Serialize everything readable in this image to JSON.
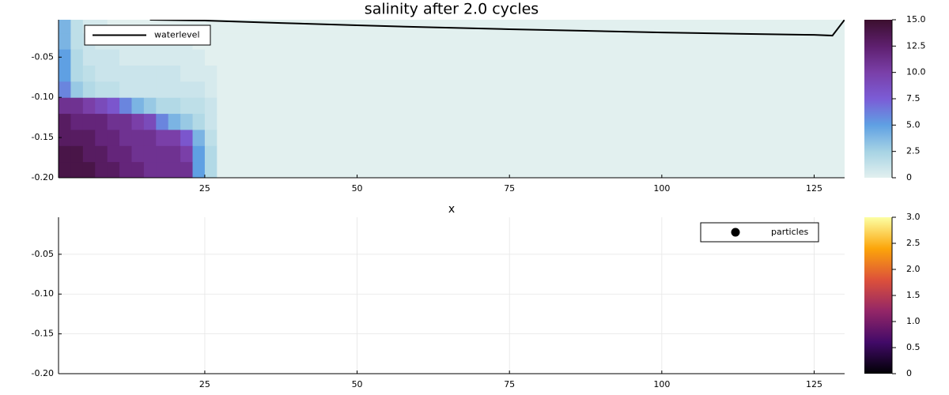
{
  "chart_data": [
    {
      "type": "heatmap",
      "title": "salinity after 2.0 cycles",
      "xlabel": "x",
      "x_edges": [
        1,
        3,
        5,
        7,
        9,
        11,
        13,
        15,
        17,
        19,
        21,
        23,
        25,
        27,
        130
      ],
      "y_edges": [
        -0.2,
        -0.18,
        -0.16,
        -0.14,
        -0.12,
        -0.1,
        -0.08,
        -0.06,
        -0.04,
        -0.02,
        -0.0035
      ],
      "values": [
        [
          14,
          14,
          14,
          13,
          13,
          12,
          12,
          11,
          11,
          11,
          11,
          5,
          2,
          0
        ],
        [
          14,
          14,
          13,
          13,
          12,
          12,
          11,
          11,
          11,
          11,
          10,
          5,
          2,
          0
        ],
        [
          13,
          13,
          13,
          12,
          12,
          11,
          11,
          11,
          10,
          10,
          8,
          4,
          1.5,
          0
        ],
        [
          13,
          12,
          12,
          12,
          11,
          11,
          10,
          9,
          6,
          4,
          3,
          2,
          1,
          0
        ],
        [
          11,
          11,
          10,
          9,
          8,
          6,
          4,
          3,
          2,
          2,
          1.5,
          1.5,
          1,
          0
        ],
        [
          6,
          3,
          2,
          1.5,
          1.5,
          1,
          1,
          1,
          1,
          1,
          1,
          1,
          0.5,
          0
        ],
        [
          5,
          2,
          1.5,
          1,
          1,
          1,
          1,
          1,
          1,
          1,
          0.5,
          0.5,
          0.5,
          0
        ],
        [
          5,
          2,
          1,
          1,
          1,
          0.5,
          0.5,
          0.5,
          0.5,
          0.5,
          0.5,
          0.5,
          0,
          0
        ],
        [
          4,
          1.5,
          1,
          0.5,
          0.5,
          0.5,
          0.5,
          0.5,
          0.5,
          0.5,
          0.5,
          0,
          0,
          0
        ],
        [
          4,
          1.5,
          0.5,
          0.5,
          0,
          0,
          0,
          0,
          0,
          0,
          0,
          0,
          0,
          0
        ]
      ],
      "xlim": [
        1,
        130
      ],
      "ylim": [
        -0.2,
        -0.0035
      ],
      "xticks": [
        25,
        50,
        75,
        100,
        125
      ],
      "yticks": [
        -0.05,
        {
          "value": -0.1,
          "label": "-0.10"
        },
        -0.15,
        {
          "value": -0.2,
          "label": "-0.20"
        }
      ],
      "clim": [
        0,
        15
      ],
      "cticks": [
        0,
        2.5,
        {
          "value": 5,
          "label": "5.0"
        },
        7.5,
        {
          "value": 10,
          "label": "10.0"
        },
        12.5,
        {
          "value": 15,
          "label": "15.0"
        }
      ],
      "colormap": [
        "#e2f0ef",
        "#a6d3e4",
        "#5fa0e3",
        "#7b5cd6",
        "#7a3fa8",
        "#5e1f6e",
        "#3b0f2e"
      ],
      "legend": "top-left",
      "series": [
        {
          "name": "waterlevel",
          "color": "#000000",
          "x": [
            16,
            25,
            37.5,
            50,
            62.5,
            75,
            87.5,
            100,
            112.5,
            125,
            128,
            130
          ],
          "values": [
            -0.0035,
            -0.0045,
            -0.0075,
            -0.0104,
            -0.013,
            -0.0153,
            -0.0173,
            -0.0193,
            -0.021,
            -0.0223,
            -0.0232,
            -0.0035
          ]
        }
      ]
    },
    {
      "type": "scatter",
      "xlim": [
        1,
        130
      ],
      "ylim": [
        -0.2,
        -0.0035
      ],
      "xticks": [
        25,
        50,
        75,
        100,
        125
      ],
      "yticks": [
        -0.05,
        {
          "value": -0.1,
          "label": "-0.10"
        },
        -0.15,
        {
          "value": -0.2,
          "label": "-0.20"
        }
      ],
      "grid": true,
      "clim": [
        0,
        3
      ],
      "cticks": [
        0,
        0.5,
        {
          "value": 1,
          "label": "1.0"
        },
        1.5,
        {
          "value": 2,
          "label": "2.0"
        },
        2.5,
        {
          "value": 3,
          "label": "3.0"
        }
      ],
      "colormap": [
        "#000004",
        "#420a68",
        "#932667",
        "#dd513a",
        "#fca50a",
        "#fcffa4"
      ],
      "legend": "top-right",
      "series": [
        {
          "name": "particles",
          "color": "#000000",
          "x": [],
          "values": []
        }
      ]
    }
  ]
}
